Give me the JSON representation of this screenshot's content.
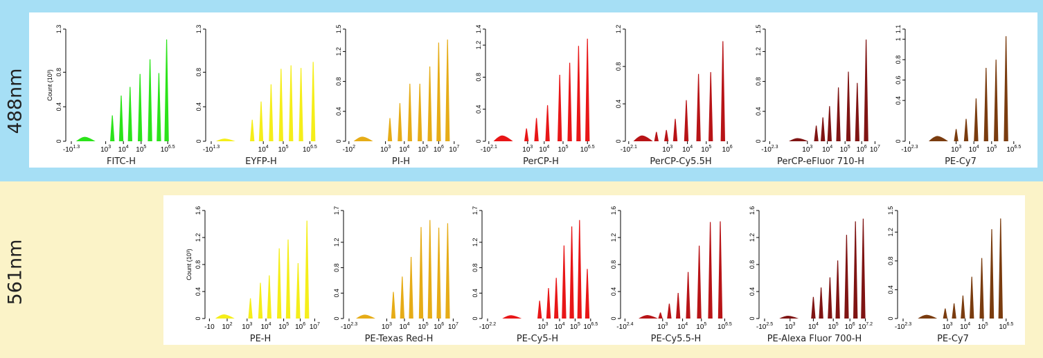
{
  "rows": [
    {
      "laser": "488nm",
      "background": "#a6dff5"
    },
    {
      "laser": "561nm",
      "background": "#fbf3c8"
    }
  ],
  "y_axis_label": "Count (10³)",
  "chart_data": [
    {
      "type": "area",
      "row": "488nm",
      "title": "",
      "xlabel": "FITC-H",
      "ylabel": "Count (10³)",
      "color": "#2be31a",
      "yticks": [
        "0",
        "0.4",
        "0.8",
        "1.3"
      ],
      "ylim": [
        0,
        1.3
      ],
      "xticks": [
        {
          "base": "-10",
          "exp": "1.3",
          "pos": 0.05
        },
        {
          "base": "10",
          "exp": "3",
          "pos": 0.36
        },
        {
          "base": "10",
          "exp": "4",
          "pos": 0.52
        },
        {
          "base": "10",
          "exp": "5",
          "pos": 0.68
        },
        {
          "base": "10",
          "exp": "6.5",
          "pos": 0.92
        }
      ],
      "series": [
        {
          "values": [
            0.05,
            0.3,
            0.53,
            0.63,
            0.78,
            0.95,
            0.79,
            1.18
          ],
          "positions": [
            0.18,
            0.42,
            0.5,
            0.58,
            0.67,
            0.76,
            0.84,
            0.91
          ]
        }
      ]
    },
    {
      "type": "area",
      "row": "488nm",
      "title": "",
      "xlabel": "EYFP-H",
      "ylabel": "",
      "color": "#f5ee1a",
      "yticks": [
        "0",
        "0.4",
        "0.8",
        "1.3"
      ],
      "ylim": [
        0,
        1.3
      ],
      "xticks": [
        {
          "base": "-10",
          "exp": "1.3",
          "pos": 0.05
        },
        {
          "base": "10",
          "exp": "4",
          "pos": 0.52
        },
        {
          "base": "10",
          "exp": "5",
          "pos": 0.7
        },
        {
          "base": "10",
          "exp": "6.5",
          "pos": 0.94
        }
      ],
      "series": [
        {
          "values": [
            0.03,
            0.25,
            0.46,
            0.66,
            0.84,
            0.88,
            0.85,
            0.92
          ],
          "positions": [
            0.18,
            0.42,
            0.5,
            0.59,
            0.68,
            0.77,
            0.86,
            0.97
          ]
        }
      ]
    },
    {
      "type": "area",
      "row": "488nm",
      "title": "",
      "xlabel": "PI-H",
      "ylabel": "",
      "color": "#e6ac17",
      "yticks": [
        "0",
        "0.4",
        "0.8",
        "1.2",
        "1.5"
      ],
      "ylim": [
        0,
        1.5
      ],
      "xticks": [
        {
          "base": "-10",
          "exp": "2",
          "pos": 0.03
        },
        {
          "base": "10",
          "exp": "3",
          "pos": 0.36
        },
        {
          "base": "10",
          "exp": "4",
          "pos": 0.53
        },
        {
          "base": "10",
          "exp": "5",
          "pos": 0.7
        },
        {
          "base": "10",
          "exp": "6",
          "pos": 0.84
        },
        {
          "base": "10",
          "exp": "7",
          "pos": 0.98
        }
      ],
      "series": [
        {
          "values": [
            0.06,
            0.31,
            0.51,
            0.77,
            0.77,
            1.0,
            1.32,
            1.36
          ],
          "positions": [
            0.16,
            0.4,
            0.49,
            0.58,
            0.67,
            0.76,
            0.84,
            0.92
          ]
        }
      ]
    },
    {
      "type": "area",
      "row": "488nm",
      "title": "",
      "xlabel": "PerCP-H",
      "ylabel": "",
      "color": "#e81617",
      "yticks": [
        "0",
        "0.4",
        "0.8",
        "1.2",
        "1.4"
      ],
      "ylim": [
        0,
        1.4
      ],
      "xticks": [
        {
          "base": "-10",
          "exp": "2.1",
          "pos": 0.03
        },
        {
          "base": "10",
          "exp": "3",
          "pos": 0.38
        },
        {
          "base": "10",
          "exp": "4",
          "pos": 0.53
        },
        {
          "base": "10",
          "exp": "5",
          "pos": 0.7
        },
        {
          "base": "10",
          "exp": "6.5",
          "pos": 0.92
        }
      ],
      "series": [
        {
          "values": [
            0.07,
            0.16,
            0.29,
            0.45,
            0.83,
            0.98,
            1.19,
            1.28
          ],
          "positions": [
            0.16,
            0.37,
            0.46,
            0.56,
            0.67,
            0.76,
            0.84,
            0.92
          ]
        }
      ]
    },
    {
      "type": "area",
      "row": "488nm",
      "title": "",
      "xlabel": "PerCP-Cy5.5H",
      "ylabel": "",
      "color": "#b81417",
      "yticks": [
        "0",
        "0.4",
        "0.8",
        "1.2"
      ],
      "ylim": [
        0,
        1.2
      ],
      "xticks": [
        {
          "base": "-10",
          "exp": "2.1",
          "pos": 0.03
        },
        {
          "base": "10",
          "exp": "3",
          "pos": 0.38
        },
        {
          "base": "10",
          "exp": "4",
          "pos": 0.56
        },
        {
          "base": "10",
          "exp": "5",
          "pos": 0.73
        },
        {
          "base": "10",
          "exp": "6",
          "pos": 0.92
        }
      ],
      "series": [
        {
          "values": [
            0.06,
            0.1,
            0.12,
            0.24,
            0.44,
            0.72,
            0.74,
            1.07
          ],
          "positions": [
            0.16,
            0.28,
            0.37,
            0.45,
            0.55,
            0.66,
            0.77,
            0.88
          ]
        }
      ]
    },
    {
      "type": "area",
      "row": "488nm",
      "title": "",
      "xlabel": "PerCP-eFluor 710-H",
      "ylabel": "",
      "color": "#7f1413",
      "yticks": [
        "0",
        "0.4",
        "0.8",
        "1.2",
        "1.5"
      ],
      "ylim": [
        0,
        1.5
      ],
      "xticks": [
        {
          "base": "-10",
          "exp": "2.3",
          "pos": 0.04
        },
        {
          "base": "10",
          "exp": "3",
          "pos": 0.38
        },
        {
          "base": "10",
          "exp": "4",
          "pos": 0.56
        },
        {
          "base": "10",
          "exp": "5",
          "pos": 0.72
        },
        {
          "base": "10",
          "exp": "6",
          "pos": 0.87
        },
        {
          "base": "10",
          "exp": "7",
          "pos": 0.99
        }
      ],
      "series": [
        {
          "values": [
            0.04,
            0.21,
            0.32,
            0.47,
            0.72,
            0.93,
            0.78,
            1.36
          ],
          "positions": [
            0.3,
            0.46,
            0.52,
            0.58,
            0.66,
            0.75,
            0.83,
            0.91
          ]
        }
      ]
    },
    {
      "type": "area",
      "row": "488nm",
      "title": "",
      "xlabel": "PE-Cy7",
      "ylabel": "",
      "color": "#7a3c0f",
      "yticks": [
        "0",
        "0.4",
        "0.6",
        "0.8",
        "1",
        "1.1"
      ],
      "ylim": [
        0,
        1.1
      ],
      "xticks": [
        {
          "base": "-10",
          "exp": "2.3",
          "pos": 0.04
        },
        {
          "base": "10",
          "exp": "3",
          "pos": 0.46
        },
        {
          "base": "10",
          "exp": "4",
          "pos": 0.62
        },
        {
          "base": "10",
          "exp": "5",
          "pos": 0.78
        },
        {
          "base": "10",
          "exp": "6.5",
          "pos": 0.98
        }
      ],
      "series": [
        {
          "values": [
            0.05,
            0.12,
            0.22,
            0.42,
            0.72,
            0.8,
            1.03
          ],
          "positions": [
            0.3,
            0.46,
            0.55,
            0.64,
            0.73,
            0.82,
            0.91
          ]
        }
      ]
    },
    {
      "type": "area",
      "row": "561nm",
      "title": "",
      "xlabel": "PE-H",
      "ylabel": "Count (10³)",
      "color": "#f5ee1a",
      "yticks": [
        "0",
        "0.4",
        "0.8",
        "1.2",
        "1.6"
      ],
      "ylim": [
        0,
        1.6
      ],
      "xticks": [
        {
          "base": "-10",
          "exp": "",
          "pos": 0.04
        },
        {
          "base": "10",
          "exp": "2",
          "pos": 0.2
        },
        {
          "base": "10",
          "exp": "3",
          "pos": 0.38
        },
        {
          "base": "10",
          "exp": "4",
          "pos": 0.55
        },
        {
          "base": "10",
          "exp": "5",
          "pos": 0.71
        },
        {
          "base": "10",
          "exp": "6",
          "pos": 0.86
        },
        {
          "base": "10",
          "exp": "7",
          "pos": 0.99
        }
      ],
      "series": [
        {
          "values": [
            0.06,
            0.3,
            0.53,
            0.64,
            1.04,
            1.17,
            0.82,
            1.45
          ],
          "positions": [
            0.18,
            0.41,
            0.5,
            0.58,
            0.67,
            0.75,
            0.84,
            0.92
          ]
        }
      ]
    },
    {
      "type": "area",
      "row": "561nm",
      "title": "",
      "xlabel": "PE-Texas Red-H",
      "ylabel": "",
      "color": "#e6ac17",
      "yticks": [
        "0",
        "0.4",
        "0.8",
        "1.2",
        "1.7"
      ],
      "ylim": [
        0,
        1.7
      ],
      "xticks": [
        {
          "base": "-10",
          "exp": "2.3",
          "pos": 0.05
        },
        {
          "base": "10",
          "exp": "3",
          "pos": 0.39
        },
        {
          "base": "10",
          "exp": "4",
          "pos": 0.55
        },
        {
          "base": "10",
          "exp": "5",
          "pos": 0.72
        },
        {
          "base": "10",
          "exp": "6",
          "pos": 0.86
        },
        {
          "base": "10",
          "exp": "7",
          "pos": 0.99
        }
      ],
      "series": [
        {
          "values": [
            0.06,
            0.42,
            0.66,
            0.97,
            1.44,
            1.55,
            1.43,
            1.5
          ],
          "positions": [
            0.2,
            0.45,
            0.53,
            0.61,
            0.7,
            0.78,
            0.86,
            0.94
          ]
        }
      ]
    },
    {
      "type": "area",
      "row": "561nm",
      "title": "",
      "xlabel": "PE-Cy5-H",
      "ylabel": "",
      "color": "#e81617",
      "yticks": [
        "0",
        "0.4",
        "0.8",
        "1.2",
        "1.7"
      ],
      "ylim": [
        0,
        1.7
      ],
      "xticks": [
        {
          "base": "-10",
          "exp": "2.2",
          "pos": 0.05
        },
        {
          "base": "10",
          "exp": "3",
          "pos": 0.55
        },
        {
          "base": "10",
          "exp": "4",
          "pos": 0.7
        },
        {
          "base": "10",
          "exp": "5",
          "pos": 0.84
        },
        {
          "base": "10",
          "exp": "6.5",
          "pos": 0.98
        }
      ],
      "series": [
        {
          "values": [
            0.05,
            0.28,
            0.48,
            0.64,
            1.15,
            1.45,
            1.55,
            0.78
          ],
          "positions": [
            0.27,
            0.52,
            0.6,
            0.67,
            0.74,
            0.81,
            0.88,
            0.95
          ]
        }
      ]
    },
    {
      "type": "area",
      "row": "561nm",
      "title": "",
      "xlabel": "PE-Cy5.5-H",
      "ylabel": "",
      "color": "#b81417",
      "yticks": [
        "0",
        "0.4",
        "0.8",
        "1.2",
        "1.6"
      ],
      "ylim": [
        0,
        1.6
      ],
      "xticks": [
        {
          "base": "-10",
          "exp": "2.4",
          "pos": 0.04
        },
        {
          "base": "10",
          "exp": "3",
          "pos": 0.38
        },
        {
          "base": "10",
          "exp": "4",
          "pos": 0.56
        },
        {
          "base": "10",
          "exp": "5",
          "pos": 0.73
        },
        {
          "base": "10",
          "exp": "6.5",
          "pos": 0.94
        }
      ],
      "series": [
        {
          "values": [
            0.05,
            0.09,
            0.22,
            0.38,
            0.69,
            1.08,
            1.43,
            1.44
          ],
          "positions": [
            0.25,
            0.36,
            0.44,
            0.52,
            0.61,
            0.71,
            0.81,
            0.9
          ]
        }
      ]
    },
    {
      "type": "area",
      "row": "561nm",
      "title": "",
      "xlabel": "PE-Alexa Fluor 700-H",
      "ylabel": "",
      "color": "#7f1413",
      "yticks": [
        "0",
        "0.4",
        "0.8",
        "1.2",
        "1.6"
      ],
      "ylim": [
        0,
        1.6
      ],
      "xticks": [
        {
          "base": "-10",
          "exp": "2.5",
          "pos": 0.05
        },
        {
          "base": "10",
          "exp": "3",
          "pos": 0.28
        },
        {
          "base": "10",
          "exp": "4",
          "pos": 0.49
        },
        {
          "base": "10",
          "exp": "5",
          "pos": 0.67
        },
        {
          "base": "10",
          "exp": "6",
          "pos": 0.82
        },
        {
          "base": "10",
          "exp": "7.2",
          "pos": 0.96
        }
      ],
      "series": [
        {
          "values": [
            0.04,
            0.32,
            0.46,
            0.61,
            0.86,
            1.24,
            1.44,
            1.48
          ],
          "positions": [
            0.27,
            0.49,
            0.56,
            0.64,
            0.71,
            0.79,
            0.87,
            0.94
          ]
        }
      ]
    },
    {
      "type": "area",
      "row": "561nm",
      "title": "",
      "xlabel": "PE-Cy7",
      "ylabel": "",
      "color": "#7a3c0f",
      "yticks": [
        "0",
        "0.4",
        "0.8",
        "1.2",
        "1.5"
      ],
      "ylim": [
        0,
        1.5
      ],
      "xticks": [
        {
          "base": "-10",
          "exp": "2.3",
          "pos": 0.05
        },
        {
          "base": "10",
          "exp": "3",
          "pos": 0.45
        },
        {
          "base": "10",
          "exp": "4",
          "pos": 0.61
        },
        {
          "base": "10",
          "exp": "5",
          "pos": 0.77
        },
        {
          "base": "10",
          "exp": "6.5",
          "pos": 0.98
        }
      ],
      "series": [
        {
          "values": [
            0.05,
            0.14,
            0.21,
            0.32,
            0.58,
            0.84,
            1.24,
            1.39
          ],
          "positions": [
            0.27,
            0.43,
            0.51,
            0.59,
            0.67,
            0.76,
            0.85,
            0.93
          ]
        }
      ]
    }
  ]
}
